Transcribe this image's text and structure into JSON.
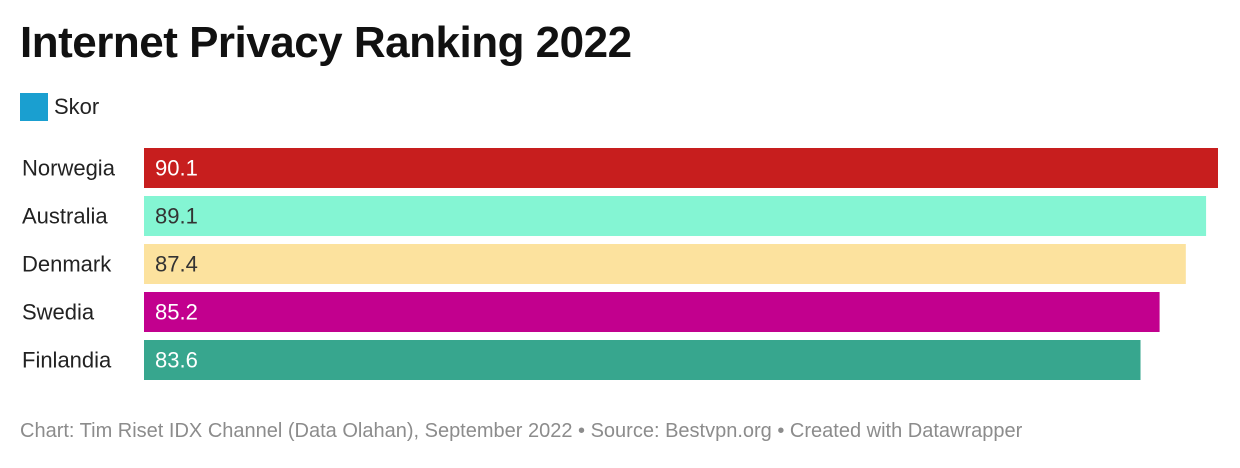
{
  "chart_data": {
    "type": "bar",
    "orientation": "horizontal",
    "title": "Internet Privacy Ranking 2022",
    "legend": {
      "position": "top-left",
      "items": [
        {
          "label": "Skor",
          "color": "#1a9fd0"
        }
      ]
    },
    "categories": [
      "Norwegia",
      "Australia",
      "Denmark",
      "Swedia",
      "Finlandia"
    ],
    "series": [
      {
        "name": "Skor",
        "values": [
          90.1,
          89.1,
          87.4,
          85.2,
          83.6
        ]
      }
    ],
    "value_labels": [
      "90.1",
      "89.1",
      "87.4",
      "85.2",
      "83.6"
    ],
    "bar_colors": [
      "#c71e1e",
      "#84f5d3",
      "#fce29e",
      "#c2008e",
      "#37a68e"
    ],
    "label_colors": [
      "#ffffff",
      "#333333",
      "#333333",
      "#ffffff",
      "#ffffff"
    ],
    "xlim": [
      0,
      90.1
    ],
    "grid": false,
    "xlabel": "",
    "ylabel": ""
  },
  "footer": "Chart: Tim Riset IDX Channel (Data Olahan), September 2022 • Source: Bestvpn.org • Created with Datawrapper"
}
